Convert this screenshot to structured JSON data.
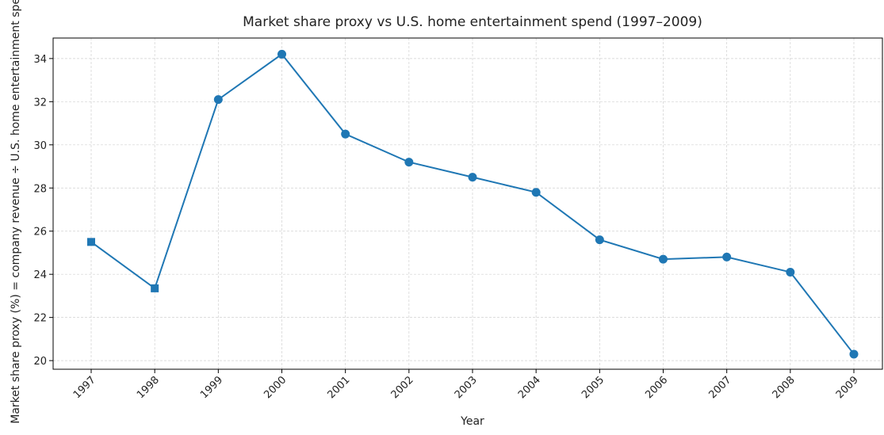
{
  "chart_data": {
    "type": "line",
    "title": "Market share proxy vs U.S. home entertainment spend (1997–2009)",
    "x_label": "Year",
    "y_label": "Market share proxy (%) = company revenue ÷ U.S. home entertainment spend",
    "categories": [
      "1997",
      "1998",
      "1999",
      "2000",
      "2001",
      "2002",
      "2003",
      "2004",
      "2005",
      "2006",
      "2007",
      "2008",
      "2009"
    ],
    "series": [
      {
        "color": "#1f77b4",
        "values": [
          25.5,
          23.35,
          32.1,
          34.2,
          30.5,
          29.2,
          28.5,
          27.8,
          25.6,
          24.7,
          24.8,
          24.1,
          20.3
        ],
        "markers": [
          "square",
          "square",
          "circle",
          "circle",
          "circle",
          "circle",
          "circle",
          "circle",
          "circle",
          "circle",
          "circle",
          "circle",
          "circle"
        ]
      }
    ],
    "ylim": [
      19.6,
      34.95
    ],
    "yticks": [
      20,
      22,
      24,
      26,
      28,
      30,
      32,
      34
    ],
    "grid": true
  }
}
